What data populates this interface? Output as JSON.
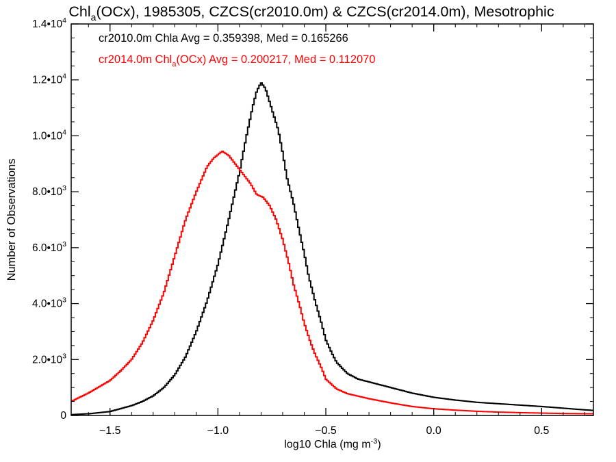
{
  "chart_data": {
    "type": "line",
    "title": {
      "prefix": "Chl",
      "sub": "a",
      "suffix": "(OCx), 1985305, CZCS(cr2010.0m) & CZCS(cr2014.0m), Mesotrophic"
    },
    "xlabel": {
      "main": "log10 Chla (mg m",
      "sup": "-3",
      "end": ")"
    },
    "ylabel": "Number of Observations",
    "xlim": [
      -1.68,
      0.74
    ],
    "ylim": [
      0,
      14000
    ],
    "x_ticks": [
      {
        "value": -1.5,
        "label": "−1.5"
      },
      {
        "value": -1.0,
        "label": "−1.0"
      },
      {
        "value": -0.5,
        "label": "−0.5"
      },
      {
        "value": 0.0,
        "label": "0.0"
      },
      {
        "value": 0.5,
        "label": "0.5"
      }
    ],
    "y_ticks": [
      {
        "value": 0,
        "mant": "0",
        "exp": ""
      },
      {
        "value": 2000,
        "mant": "2.0•10",
        "exp": "3"
      },
      {
        "value": 4000,
        "mant": "4.0•10",
        "exp": "3"
      },
      {
        "value": 6000,
        "mant": "6.0•10",
        "exp": "3"
      },
      {
        "value": 8000,
        "mant": "8.0•10",
        "exp": "3"
      },
      {
        "value": 10000,
        "mant": "1.0•10",
        "exp": "4"
      },
      {
        "value": 12000,
        "mant": "1.2•10",
        "exp": "4"
      },
      {
        "value": 14000,
        "mant": "1.4•10",
        "exp": "4"
      }
    ],
    "grid": false,
    "legend_placement": "top-left",
    "series": [
      {
        "legend": {
          "prefix": "cr2010.0m Chla Avg = 0.359398, Med = 0.165266",
          "sub": "",
          "suffix": ""
        },
        "color": "#000000",
        "points": [
          [
            -1.68,
            30
          ],
          [
            -1.6,
            60
          ],
          [
            -1.5,
            140
          ],
          [
            -1.4,
            350
          ],
          [
            -1.35,
            500
          ],
          [
            -1.3,
            700
          ],
          [
            -1.25,
            1000
          ],
          [
            -1.2,
            1450
          ],
          [
            -1.15,
            2100
          ],
          [
            -1.1,
            3000
          ],
          [
            -1.05,
            4100
          ],
          [
            -1.0,
            5400
          ],
          [
            -0.95,
            7000
          ],
          [
            -0.9,
            8700
          ],
          [
            -0.87,
            9900
          ],
          [
            -0.84,
            11000
          ],
          [
            -0.82,
            11600
          ],
          [
            -0.8,
            11900
          ],
          [
            -0.78,
            11700
          ],
          [
            -0.76,
            11200
          ],
          [
            -0.74,
            10700
          ],
          [
            -0.72,
            10200
          ],
          [
            -0.7,
            9400
          ],
          [
            -0.68,
            8500
          ],
          [
            -0.65,
            7600
          ],
          [
            -0.62,
            6500
          ],
          [
            -0.6,
            5800
          ],
          [
            -0.58,
            5000
          ],
          [
            -0.55,
            4100
          ],
          [
            -0.52,
            3300
          ],
          [
            -0.5,
            2700
          ],
          [
            -0.47,
            2200
          ],
          [
            -0.45,
            1900
          ],
          [
            -0.4,
            1500
          ],
          [
            -0.35,
            1300
          ],
          [
            -0.3,
            1200
          ],
          [
            -0.2,
            1000
          ],
          [
            -0.1,
            800
          ],
          [
            0.0,
            650
          ],
          [
            0.1,
            550
          ],
          [
            0.2,
            470
          ],
          [
            0.3,
            420
          ],
          [
            0.4,
            370
          ],
          [
            0.5,
            320
          ],
          [
            0.6,
            260
          ],
          [
            0.7,
            200
          ],
          [
            0.74,
            180
          ]
        ]
      },
      {
        "legend": {
          "prefix": "cr2014.0m Chl",
          "sub": "a",
          "suffix": "(OCx) Avg = 0.200217, Med = 0.112070"
        },
        "color": "#ff0000",
        "points": [
          [
            -1.68,
            500
          ],
          [
            -1.6,
            800
          ],
          [
            -1.5,
            1250
          ],
          [
            -1.45,
            1600
          ],
          [
            -1.4,
            2000
          ],
          [
            -1.35,
            2600
          ],
          [
            -1.3,
            3400
          ],
          [
            -1.25,
            4400
          ],
          [
            -1.2,
            5700
          ],
          [
            -1.15,
            7000
          ],
          [
            -1.1,
            8000
          ],
          [
            -1.05,
            8900
          ],
          [
            -1.02,
            9200
          ],
          [
            -0.98,
            9450
          ],
          [
            -0.95,
            9300
          ],
          [
            -0.92,
            9000
          ],
          [
            -0.9,
            8800
          ],
          [
            -0.88,
            8600
          ],
          [
            -0.85,
            8300
          ],
          [
            -0.82,
            7900
          ],
          [
            -0.79,
            7800
          ],
          [
            -0.76,
            7500
          ],
          [
            -0.73,
            7000
          ],
          [
            -0.7,
            6300
          ],
          [
            -0.67,
            5400
          ],
          [
            -0.65,
            4700
          ],
          [
            -0.62,
            3900
          ],
          [
            -0.6,
            3300
          ],
          [
            -0.57,
            2600
          ],
          [
            -0.55,
            2200
          ],
          [
            -0.52,
            1700
          ],
          [
            -0.5,
            1300
          ],
          [
            -0.45,
            950
          ],
          [
            -0.4,
            780
          ],
          [
            -0.3,
            600
          ],
          [
            -0.2,
            450
          ],
          [
            -0.1,
            320
          ],
          [
            0.0,
            240
          ],
          [
            0.1,
            190
          ],
          [
            0.2,
            150
          ],
          [
            0.3,
            120
          ],
          [
            0.4,
            100
          ],
          [
            0.5,
            85
          ],
          [
            0.6,
            70
          ],
          [
            0.74,
            60
          ]
        ]
      }
    ]
  }
}
